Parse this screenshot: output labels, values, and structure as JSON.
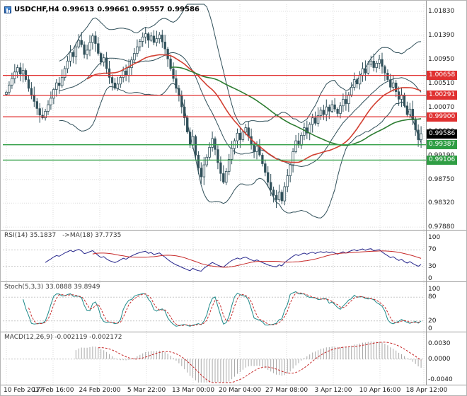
{
  "titlebar": {
    "symbol": "USDCHF,H4",
    "open": "0.99613",
    "high": "0.99661",
    "low": "0.99557",
    "close": "0.99586"
  },
  "panes": {
    "rsi": {
      "label": "RSI(14) 35.1837",
      "ma_label": "->MA(18) 37.7735",
      "scale": [
        "100",
        "70",
        "30",
        "0"
      ]
    },
    "stoch": {
      "label": "Stoch(5,3,3) 33.0888 39.8949",
      "scale": [
        "100",
        "80",
        "20",
        "0"
      ]
    },
    "macd": {
      "label": "MACD(12,26,9) -0.002119 -0.002172",
      "scale": [
        "0.0030",
        "0.0000",
        "-0.0040"
      ]
    }
  },
  "axes": {
    "price_labels": [
      "1.01830",
      "1.01390",
      "1.00950",
      "1.00510",
      "1.00070",
      "0.99630",
      "0.99190",
      "0.98750",
      "0.98320",
      "0.97880"
    ],
    "time_labels": [
      "10 Feb 2017",
      "17 Feb 16:00",
      "24 Feb 20:00",
      "5 Mar 22:00",
      "13 Mar 00:00",
      "20 Mar 04:00",
      "27 Mar 08:00",
      "3 Apr 12:00",
      "10 Apr 16:00",
      "18 Apr 12:00"
    ]
  },
  "levels": {
    "resistance": [
      {
        "value": 1.00658,
        "label": "1.00658"
      },
      {
        "value": 1.00291,
        "label": "1.00291"
      },
      {
        "value": 0.999,
        "label": "0.99900"
      }
    ],
    "support": [
      {
        "value": 0.99387,
        "label": "0.99387"
      },
      {
        "value": 0.99106,
        "label": "0.99106"
      }
    ],
    "current": {
      "value": 0.99586,
      "label": "0.99586"
    }
  },
  "colors": {
    "candle": "#31505a",
    "resistance": "#e03131",
    "support": "#2f9e44",
    "current_bg": "#000000",
    "ma_fast": "#d23f31",
    "ma_slow": "#2e7d32",
    "rsi": "#26268c",
    "rsi_ma": "#c62828",
    "stoch_k": "#1f8a8a",
    "stoch_d": "#c62828",
    "macd_signal": "#c62828",
    "histogram": "#a8a8a8",
    "grid": "#dcdcdc",
    "separator": "#999999"
  },
  "chart_data": {
    "type": "candlestick",
    "symbol": "USDCHF",
    "timeframe": "H4",
    "title": "USDCHF,H4 0.99613 0.99661 0.99557 0.99586",
    "price_range": [
      0.9783,
      1.0196
    ],
    "x_range": [
      "10 Feb 2017",
      "18 Apr 12:00"
    ],
    "grid": true,
    "closes": [
      1.0035,
      1.0048,
      1.006,
      1.0072,
      1.008,
      1.0068,
      1.0075,
      1.0058,
      1.0042,
      1.003,
      1.0018,
      1.0005,
      0.9993,
      0.9988,
      1.0,
      1.0012,
      1.0024,
      1.004,
      1.0052,
      1.0047,
      1.0062,
      1.0078,
      1.0092,
      1.0108,
      1.01,
      1.0118,
      1.013,
      1.0122,
      1.0104,
      1.0112,
      1.0126,
      1.0138,
      1.0124,
      1.0106,
      1.009,
      1.0098,
      1.0078,
      1.0062,
      1.0052,
      1.0042,
      1.005,
      1.0062,
      1.0074,
      1.0066,
      1.008,
      1.0094,
      1.0106,
      1.0118,
      1.0128,
      1.0136,
      1.0142,
      1.013,
      1.0138,
      1.0126,
      1.0133,
      1.014,
      1.0127,
      1.0114,
      1.0096,
      1.0078,
      1.006,
      1.0042,
      1.0028,
      1.0008,
      0.9988,
      0.9962,
      0.9938,
      0.9954,
      0.992,
      0.9896,
      0.988,
      0.9902,
      0.9916,
      0.9934,
      0.995,
      0.993,
      0.9906,
      0.9886,
      0.987,
      0.989,
      0.9912,
      0.9932,
      0.9946,
      0.996,
      0.9948,
      0.9962,
      0.997,
      0.9954,
      0.994,
      0.9926,
      0.9936,
      0.992,
      0.9904,
      0.9888,
      0.987,
      0.9856,
      0.9846,
      0.9838,
      0.9852,
      0.9836,
      0.9862,
      0.9882,
      0.9902,
      0.9926,
      0.9946,
      0.9938,
      0.9956,
      0.997,
      0.996,
      0.9976,
      0.9988,
      0.9978,
      0.9992,
      1.0002,
      0.9994,
      1.0008,
      1.0,
      1.0012,
      1.0004,
      0.9996,
      1.001,
      1.0022,
      1.0014,
      1.003,
      1.0044,
      1.0058,
      1.005,
      1.0066,
      1.0078,
      1.007,
      1.0086,
      1.0092,
      1.008,
      1.0088,
      1.0095,
      1.0082,
      1.007,
      1.0058,
      1.0044,
      1.0052,
      1.0036,
      1.0022,
      1.003,
      1.001,
      0.9994,
      1.0004,
      0.9984,
      0.9966,
      0.9948,
      0.9959
    ],
    "overlays": {
      "bollinger_period": 20,
      "bollinger_dev": 2,
      "ma_fast_period": 30,
      "ma_slow_period": 60
    },
    "indicators": {
      "rsi": {
        "period": 14,
        "value": 35.1837,
        "ma_period": 18,
        "ma_value": 37.7735,
        "levels": [
          70,
          30
        ],
        "range": [
          0,
          100
        ]
      },
      "stoch": {
        "params": [
          5,
          3,
          3
        ],
        "k": 33.0888,
        "d": 39.8949,
        "levels": [
          80,
          20
        ],
        "range": [
          0,
          100
        ]
      },
      "macd": {
        "params": [
          12,
          26,
          9
        ],
        "value": -0.002119,
        "signal": -0.002172,
        "range": [
          -0.0045,
          0.0035
        ]
      }
    }
  }
}
